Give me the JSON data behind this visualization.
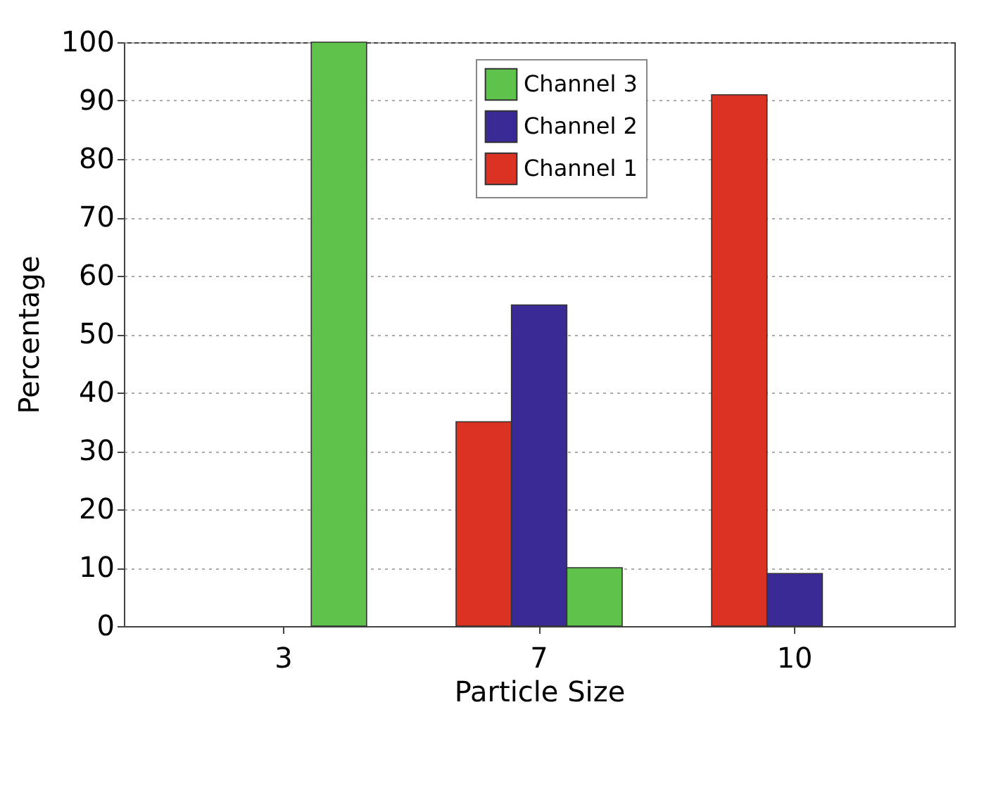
{
  "chart_data": {
    "type": "bar",
    "xlabel": "Particle Size",
    "ylabel": "Percentage",
    "categories": [
      "3",
      "7",
      "10"
    ],
    "series": [
      {
        "name": "Channel 1",
        "color": "#dc3224",
        "values": [
          null,
          35,
          91
        ]
      },
      {
        "name": "Channel 2",
        "color": "#3a2a96",
        "values": [
          null,
          55,
          9
        ]
      },
      {
        "name": "Channel 3",
        "color": "#5dc34a",
        "values": [
          100,
          10,
          null
        ]
      }
    ],
    "ylim": [
      0,
      100
    ],
    "yticks": [
      0,
      10,
      20,
      30,
      40,
      50,
      60,
      70,
      80,
      90,
      100
    ],
    "grid": "y",
    "legend": "top"
  }
}
